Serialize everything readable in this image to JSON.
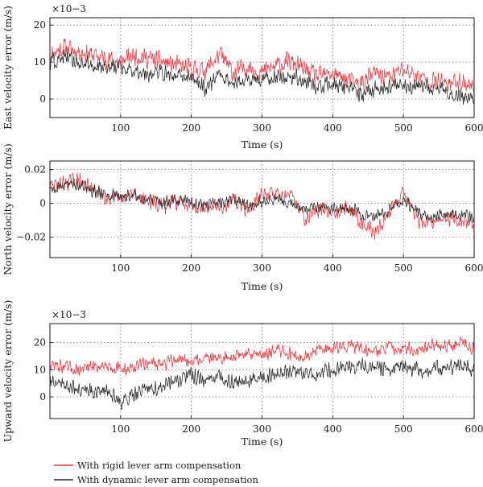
{
  "chart_data": [
    {
      "type": "line",
      "ylabel": "East velocity error (m/s)",
      "xlabel": "Time (s)",
      "multiplier": "×10−3",
      "xlim": [
        0,
        600
      ],
      "ylim": [
        -5,
        22
      ],
      "xticks": [
        100,
        200,
        300,
        400,
        500,
        600
      ],
      "yticks": [
        0,
        10,
        20
      ],
      "ytick_labels": [
        "0",
        "10",
        "20"
      ],
      "grid": "dotted",
      "series": [
        {
          "name": "With rigid lever arm compensation",
          "x": [
            0,
            20,
            40,
            60,
            80,
            100,
            120,
            140,
            160,
            180,
            200,
            220,
            240,
            260,
            280,
            300,
            320,
            340,
            360,
            380,
            400,
            420,
            440,
            460,
            480,
            500,
            520,
            540,
            560,
            580,
            600
          ],
          "y": [
            12,
            14,
            13,
            12,
            11,
            10,
            12,
            11,
            10,
            9,
            8,
            8,
            12,
            7,
            9,
            7,
            9,
            10,
            8,
            6,
            7,
            5,
            4,
            7,
            6,
            8,
            6,
            5,
            4,
            5,
            3
          ]
        },
        {
          "name": "With dynamic lever arm compensation",
          "x": [
            0,
            20,
            40,
            60,
            80,
            100,
            120,
            140,
            160,
            180,
            200,
            220,
            240,
            260,
            280,
            300,
            320,
            340,
            360,
            380,
            400,
            420,
            440,
            460,
            480,
            500,
            520,
            540,
            560,
            580,
            600
          ],
          "y": [
            10,
            11,
            10,
            9,
            9,
            8,
            8,
            7,
            7,
            6,
            6,
            3,
            7,
            4,
            5,
            5,
            6,
            6,
            5,
            3,
            4,
            3,
            1,
            3,
            3,
            4,
            3,
            3,
            2,
            1,
            0
          ]
        }
      ]
    },
    {
      "type": "line",
      "ylabel": "North velocity error (m/s)",
      "xlabel": "Time (s)",
      "xlim": [
        0,
        600
      ],
      "ylim": [
        -0.032,
        0.025
      ],
      "xticks": [
        100,
        200,
        300,
        400,
        500,
        600
      ],
      "yticks": [
        -0.02,
        0,
        0.02
      ],
      "ytick_labels": [
        "−0.02",
        "0",
        "0.02"
      ],
      "grid": "dotted",
      "series": [
        {
          "name": "With rigid lever arm compensation",
          "x": [
            0,
            20,
            40,
            60,
            80,
            100,
            120,
            140,
            160,
            180,
            200,
            220,
            240,
            260,
            280,
            300,
            320,
            340,
            360,
            380,
            400,
            420,
            440,
            460,
            480,
            500,
            520,
            540,
            560,
            580,
            600
          ],
          "y": [
            0.01,
            0.012,
            0.014,
            0.008,
            0.004,
            0.002,
            0.006,
            0.001,
            -0.002,
            0.001,
            0.0,
            -0.003,
            -0.002,
            0.002,
            -0.004,
            0.005,
            0.006,
            0.004,
            -0.008,
            -0.004,
            -0.005,
            -0.002,
            -0.01,
            -0.018,
            -0.005,
            0.008,
            -0.01,
            -0.012,
            -0.008,
            -0.01,
            -0.012
          ]
        },
        {
          "name": "With dynamic lever arm compensation",
          "x": [
            0,
            20,
            40,
            60,
            80,
            100,
            120,
            140,
            160,
            180,
            200,
            220,
            240,
            260,
            280,
            300,
            320,
            340,
            360,
            380,
            400,
            420,
            440,
            460,
            480,
            500,
            520,
            540,
            560,
            580,
            600
          ],
          "y": [
            0.008,
            0.01,
            0.012,
            0.008,
            0.006,
            0.004,
            0.005,
            0.002,
            0.0,
            0.002,
            0.001,
            -0.001,
            0.0,
            0.002,
            -0.002,
            0.001,
            0.003,
            0.0,
            -0.004,
            -0.002,
            -0.004,
            -0.002,
            -0.006,
            -0.008,
            -0.004,
            0.002,
            -0.006,
            -0.008,
            -0.006,
            -0.007,
            -0.008
          ]
        }
      ]
    },
    {
      "type": "line",
      "ylabel": "Upward velocity error (m/s)",
      "xlabel": "Time (s)",
      "multiplier": "×10−3",
      "xlim": [
        0,
        600
      ],
      "ylim": [
        -8,
        27
      ],
      "xticks": [
        100,
        200,
        300,
        400,
        500,
        600
      ],
      "yticks": [
        0,
        10,
        20
      ],
      "ytick_labels": [
        "0",
        "10",
        "20"
      ],
      "grid": "dotted",
      "series": [
        {
          "name": "With rigid lever arm compensation",
          "x": [
            0,
            20,
            40,
            60,
            80,
            100,
            120,
            140,
            160,
            180,
            200,
            220,
            240,
            260,
            280,
            300,
            320,
            340,
            360,
            380,
            400,
            420,
            440,
            460,
            480,
            500,
            520,
            540,
            560,
            580,
            600
          ],
          "y": [
            12,
            11,
            10,
            11,
            12,
            10,
            11,
            13,
            12,
            14,
            13,
            15,
            14,
            15,
            16,
            16,
            17,
            16,
            15,
            17,
            18,
            19,
            18,
            17,
            18,
            18,
            17,
            19,
            19,
            20,
            18
          ]
        },
        {
          "name": "With dynamic lever arm compensation",
          "x": [
            0,
            20,
            40,
            60,
            80,
            100,
            120,
            140,
            160,
            180,
            200,
            220,
            240,
            260,
            280,
            300,
            320,
            340,
            360,
            380,
            400,
            420,
            440,
            460,
            480,
            500,
            520,
            540,
            560,
            580,
            600
          ],
          "y": [
            6,
            4,
            3,
            2,
            3,
            -2,
            1,
            3,
            4,
            6,
            8,
            6,
            7,
            5,
            6,
            7,
            8,
            9,
            8,
            9,
            10,
            11,
            12,
            11,
            10,
            11,
            10,
            10,
            11,
            12,
            10
          ]
        }
      ]
    }
  ],
  "legend": {
    "placement": "bottom-left",
    "items": [
      {
        "label": "With rigid lever arm compensation",
        "color": "#e8383f"
      },
      {
        "label": "With dynamic lever arm compensation",
        "color": "#262626"
      }
    ]
  },
  "colors": {
    "rigid": "#e8383f",
    "dynamic": "#262626",
    "axes": "#000000",
    "grid": "#555555"
  }
}
